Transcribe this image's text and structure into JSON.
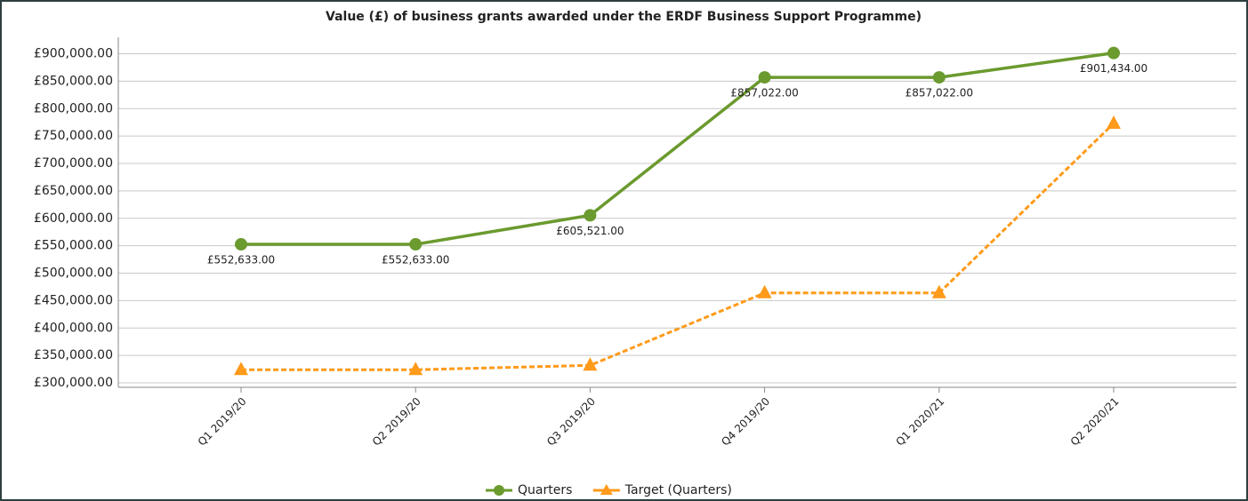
{
  "chart_data": {
    "type": "line",
    "title": "Value (£) of business grants awarded under the ERDF Business Support Programme)",
    "categories": [
      "Q1 2019/20",
      "Q2 2019/20",
      "Q3 2019/20",
      "Q4 2019/20",
      "Q1 2020/21",
      "Q2 2020/21"
    ],
    "series": [
      {
        "name": "Quarters",
        "color": "#6b9a2e",
        "marker": "circle",
        "dash": false,
        "values": [
          552633,
          552633,
          605521,
          857022,
          857022,
          901434
        ],
        "value_labels": [
          "£552,633.00",
          "£552,633.00",
          "£605,521.00",
          "£857,022.00",
          "£857,022.00",
          "£901,434.00"
        ]
      },
      {
        "name": "Target (Quarters)",
        "color": "#ff9a1a",
        "marker": "triangle",
        "dash": true,
        "values": [
          324000,
          324000,
          332000,
          464000,
          464000,
          773000
        ]
      }
    ],
    "ylim": [
      292000,
      930000
    ],
    "yticks": [
      {
        "value": 300000,
        "label": "£300,000.00"
      },
      {
        "value": 350000,
        "label": "£350,000.00"
      },
      {
        "value": 400000,
        "label": "£400,000.00"
      },
      {
        "value": 450000,
        "label": "£450,000.00"
      },
      {
        "value": 500000,
        "label": "£500,000.00"
      },
      {
        "value": 550000,
        "label": "£550,000.00"
      },
      {
        "value": 600000,
        "label": "£600,000.00"
      },
      {
        "value": 650000,
        "label": "£650,000.00"
      },
      {
        "value": 700000,
        "label": "£700,000.00"
      },
      {
        "value": 750000,
        "label": "£750,000.00"
      },
      {
        "value": 800000,
        "label": "£800,000.00"
      },
      {
        "value": 850000,
        "label": "£850,000.00"
      },
      {
        "value": 900000,
        "label": "£900,000.00"
      }
    ],
    "grid": true,
    "legend": "bottom"
  }
}
